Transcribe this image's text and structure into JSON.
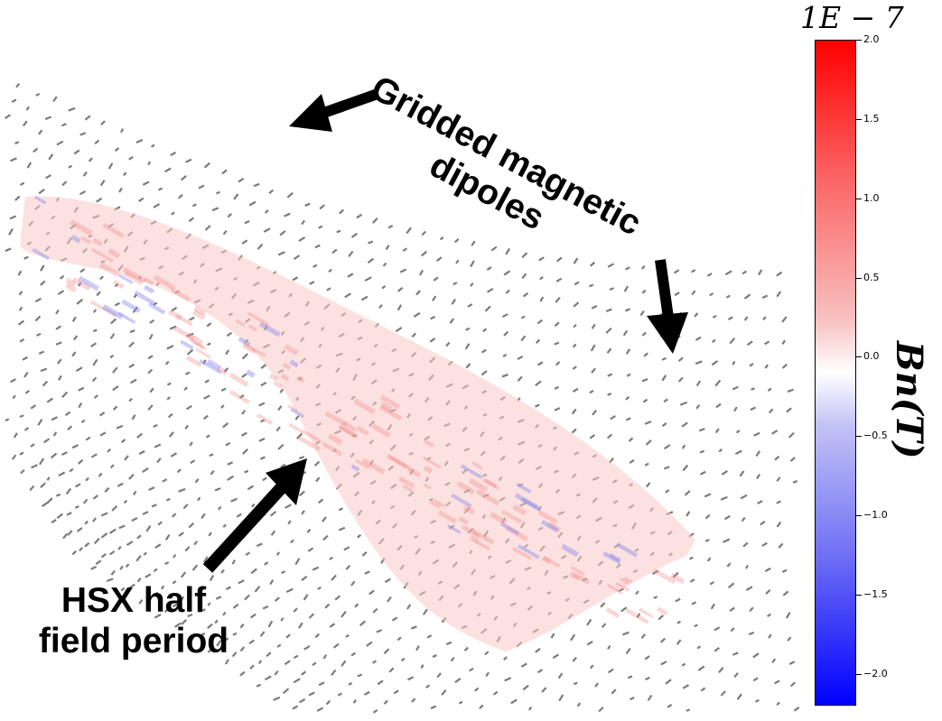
{
  "labels": {
    "gridded_line1": "Gridded magnetic",
    "gridded_line2": "dipoles",
    "hsx_line1": "HSX half",
    "hsx_line2": "field period"
  },
  "colorbar": {
    "exponent": "1E − 7",
    "quantity": "Bn(T)",
    "ticks": [
      "2.0",
      "1.5",
      "1.0",
      "0.5",
      "0.0",
      "−0.5",
      "−1.0",
      "−1.5",
      "−2.0"
    ],
    "tick_values": [
      2.0,
      1.5,
      1.0,
      0.5,
      0.0,
      -0.5,
      -1.0,
      -1.5,
      -2.0
    ],
    "range": [
      -2.2,
      2.0
    ],
    "colormap": "bwr",
    "colors": {
      "max": "#ff0000",
      "mid": "#ffffff",
      "min": "#0000ff"
    }
  },
  "colors": {
    "dipole": "#7a7a7a",
    "arrow": "#000000",
    "surface_tint": "#f7c9c4"
  }
}
